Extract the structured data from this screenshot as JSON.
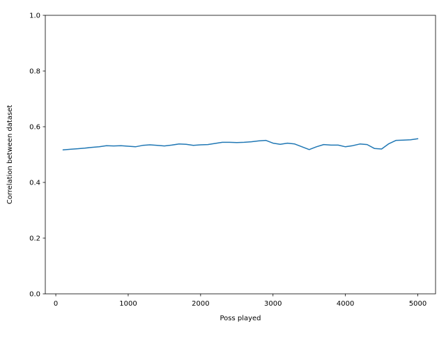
{
  "figure": {
    "background": "#ffffff"
  },
  "chart_data": {
    "type": "line",
    "title": "",
    "xlabel": "Poss played",
    "ylabel": "Correlation between dataset",
    "x": [
      100,
      200,
      300,
      400,
      500,
      600,
      700,
      800,
      900,
      1000,
      1100,
      1200,
      1300,
      1400,
      1500,
      1600,
      1700,
      1800,
      1900,
      2000,
      2100,
      2200,
      2300,
      2400,
      2500,
      2600,
      2700,
      2800,
      2900,
      3000,
      3100,
      3200,
      3300,
      3400,
      3500,
      3600,
      3700,
      3800,
      3900,
      4000,
      4100,
      4200,
      4300,
      4400,
      4500,
      4600,
      4700,
      4800,
      4900,
      5000
    ],
    "series": [
      {
        "name": "correlation",
        "color": "#1f77b4",
        "values": [
          0.517,
          0.519,
          0.521,
          0.523,
          0.526,
          0.528,
          0.532,
          0.531,
          0.532,
          0.53,
          0.528,
          0.533,
          0.535,
          0.533,
          0.531,
          0.534,
          0.538,
          0.537,
          0.533,
          0.535,
          0.536,
          0.54,
          0.544,
          0.544,
          0.543,
          0.544,
          0.546,
          0.549,
          0.551,
          0.541,
          0.537,
          0.541,
          0.538,
          0.528,
          0.518,
          0.528,
          0.536,
          0.534,
          0.534,
          0.528,
          0.532,
          0.538,
          0.536,
          0.522,
          0.52,
          0.539,
          0.551,
          0.552,
          0.553,
          0.557
        ]
      }
    ],
    "xlim": [
      -145,
      5245
    ],
    "ylim": [
      0.0,
      1.0
    ],
    "xticks": [
      0,
      1000,
      2000,
      3000,
      4000,
      5000
    ],
    "xtick_labels": [
      "0",
      "1000",
      "2000",
      "3000",
      "4000",
      "5000"
    ],
    "yticks": [
      0.0,
      0.2,
      0.4,
      0.6,
      0.8,
      1.0
    ],
    "ytick_labels": [
      "0.0",
      "0.2",
      "0.4",
      "0.6",
      "0.8",
      "1.0"
    ],
    "grid": false,
    "legend": "none",
    "axis_color": "#000000",
    "line_width": 1.5
  }
}
